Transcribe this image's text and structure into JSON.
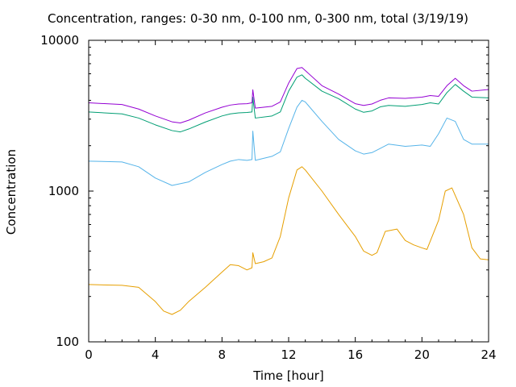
{
  "chart_data": {
    "type": "line",
    "title": "Concentration, ranges: 0-30 nm, 0-100 nm, 0-300 nm, total (3/19/19)",
    "xlabel": "Time [hour]",
    "ylabel": "Concentration",
    "xlim": [
      0,
      24
    ],
    "ylim": [
      100,
      10000
    ],
    "yscale": "log",
    "xticks": [
      "0",
      "4",
      "8",
      "12",
      "16",
      "20",
      "24"
    ],
    "yticks": [
      "100",
      "1000",
      "10000"
    ],
    "grid": false,
    "legend": "none",
    "series": [
      {
        "color": "#e69f00",
        "x": [
          0,
          2,
          3,
          4,
          4.5,
          5,
          5.5,
          6,
          7,
          8,
          8.5,
          9,
          9.5,
          9.8,
          9.85,
          10,
          10.5,
          11,
          11.5,
          12,
          12.5,
          12.8,
          13,
          14,
          15,
          16,
          16.5,
          17,
          17.3,
          17.8,
          18.5,
          19,
          19.5,
          20,
          20.3,
          21,
          21.4,
          21.8,
          22.5,
          23,
          23.5,
          24
        ],
        "y": [
          240,
          237,
          230,
          185,
          160,
          152,
          162,
          185,
          230,
          290,
          325,
          320,
          300,
          310,
          390,
          330,
          340,
          360,
          500,
          900,
          1380,
          1450,
          1380,
          1000,
          700,
          500,
          400,
          375,
          390,
          540,
          560,
          470,
          440,
          420,
          410,
          640,
          1000,
          1050,
          700,
          420,
          355,
          350
        ]
      },
      {
        "color": "#56b4e9",
        "x": [
          0,
          2,
          3,
          4,
          5,
          6,
          7,
          8,
          8.5,
          9,
          9.5,
          9.8,
          9.85,
          10,
          11,
          11.5,
          12,
          12.5,
          12.8,
          13,
          14,
          15,
          16,
          16.5,
          17,
          17.5,
          18,
          19,
          20,
          20.5,
          21,
          21.5,
          22,
          22.5,
          23,
          24
        ],
        "y": [
          1580,
          1560,
          1450,
          1220,
          1090,
          1150,
          1330,
          1500,
          1580,
          1620,
          1600,
          1620,
          2500,
          1600,
          1700,
          1820,
          2600,
          3600,
          4000,
          3900,
          2900,
          2200,
          1850,
          1760,
          1800,
          1920,
          2050,
          1980,
          2020,
          1980,
          2400,
          3050,
          2900,
          2200,
          2050,
          2050
        ]
      },
      {
        "color": "#009e73",
        "x": [
          0,
          2,
          3,
          4,
          5,
          5.5,
          6,
          7,
          8,
          8.5,
          9,
          9.5,
          9.8,
          9.85,
          10,
          11,
          11.5,
          12,
          12.5,
          12.8,
          13,
          14,
          15,
          16,
          16.5,
          17,
          17.5,
          18,
          19,
          20,
          20.5,
          21,
          21.5,
          22,
          22.5,
          23,
          24
        ],
        "y": [
          3350,
          3250,
          3050,
          2750,
          2520,
          2470,
          2580,
          2870,
          3150,
          3250,
          3300,
          3320,
          3350,
          4200,
          3050,
          3150,
          3350,
          4600,
          5700,
          5900,
          5600,
          4600,
          4100,
          3500,
          3330,
          3400,
          3620,
          3700,
          3650,
          3750,
          3850,
          3780,
          4500,
          5100,
          4600,
          4200,
          4150
        ]
      },
      {
        "color": "#9400d3",
        "x": [
          0,
          2,
          3,
          4,
          5,
          5.5,
          6,
          7,
          8,
          8.5,
          9,
          9.5,
          9.8,
          9.85,
          10,
          11,
          11.5,
          12,
          12.5,
          12.8,
          13,
          14,
          15,
          16,
          16.5,
          17,
          17.5,
          18,
          19,
          20,
          20.5,
          21,
          21.5,
          22,
          22.5,
          23,
          24
        ],
        "y": [
          3850,
          3750,
          3500,
          3150,
          2880,
          2830,
          2950,
          3300,
          3600,
          3720,
          3780,
          3800,
          3850,
          4700,
          3550,
          3650,
          3900,
          5200,
          6500,
          6600,
          6300,
          5000,
          4400,
          3800,
          3700,
          3780,
          4000,
          4150,
          4120,
          4200,
          4300,
          4250,
          5000,
          5600,
          5000,
          4600,
          4720
        ]
      }
    ]
  }
}
